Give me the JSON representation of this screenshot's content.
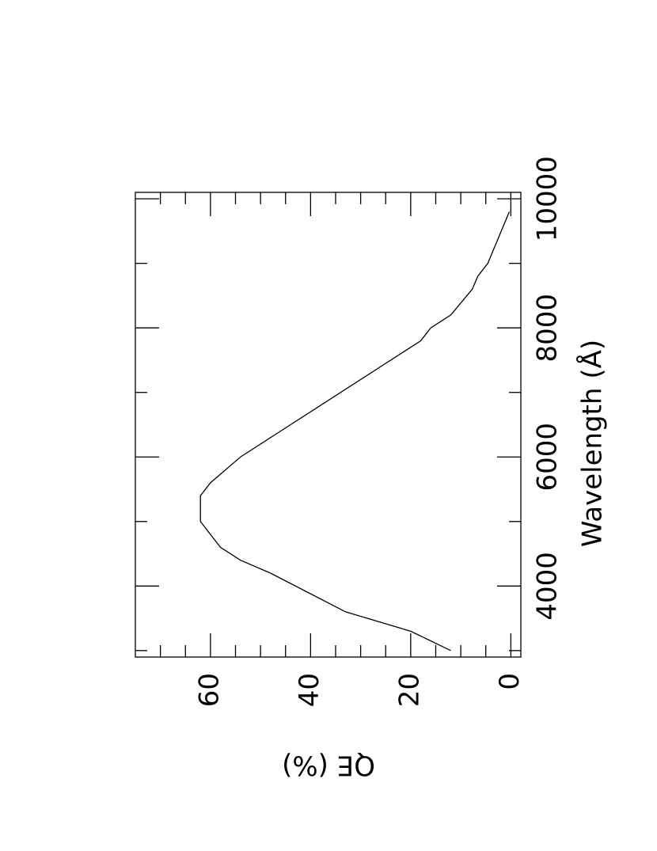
{
  "chart_data": {
    "type": "line",
    "x_label": "Wavelength (Å)",
    "y_label": "QE (%)",
    "x": [
      3000,
      3300,
      3600,
      4200,
      4400,
      4600,
      5000,
      5400,
      5600,
      6000,
      7800,
      8000,
      8200,
      8600,
      8800,
      9000,
      9800
    ],
    "series": [
      {
        "color": "#000000",
        "values": [
          12,
          20,
          33,
          48,
          54,
          58,
          62,
          62,
          60,
          54,
          18,
          16,
          12,
          7.7,
          6.6,
          4.6,
          0.3
        ]
      }
    ],
    "xlim": [
      2900,
      10100
    ],
    "ylim": [
      -2,
      75
    ],
    "xticks": [
      4000,
      6000,
      8000,
      10000
    ],
    "yticks": [
      0,
      20,
      40,
      60
    ],
    "xminor_ticks": [
      3000,
      5000,
      7000,
      9000
    ],
    "yminor_ticks": [
      5,
      10,
      15,
      25,
      30,
      35,
      45,
      50,
      55,
      65,
      70
    ],
    "orientation": "rotated-landscape"
  }
}
